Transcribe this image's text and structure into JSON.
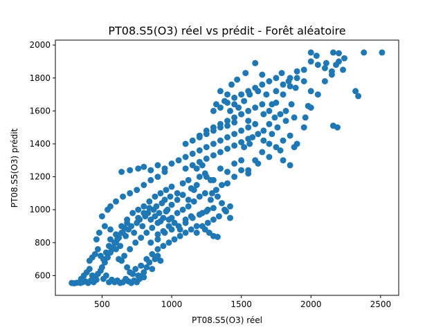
{
  "chart_data": {
    "type": "scatter",
    "title": "PT08.S5(O3) réel vs prédit - Forêt aléatoire",
    "xlabel": "PT08.S5(O3) réel",
    "ylabel": "PT08.S5(O3) prédit",
    "xlim": [
      165,
      2630
    ],
    "ylim": [
      480,
      2030
    ],
    "xticks": [
      500,
      1000,
      1500,
      2000,
      2500
    ],
    "yticks": [
      600,
      800,
      1000,
      1200,
      1400,
      1600,
      1800,
      2000
    ],
    "xtick_labels": [
      "500",
      "1000",
      "1500",
      "2000",
      "2500"
    ],
    "ytick_labels": [
      "600",
      "800",
      "1000",
      "1200",
      "1400",
      "1600",
      "1800",
      "2000"
    ],
    "grid": false,
    "legend": null,
    "marker_color": "#1f77b4",
    "point_count_note": "",
    "points": [
      [
        283,
        555
      ],
      [
        300,
        553
      ],
      [
        320,
        557
      ],
      [
        345,
        555
      ],
      [
        360,
        560
      ],
      [
        380,
        565
      ],
      [
        400,
        555
      ],
      [
        420,
        570
      ],
      [
        440,
        560
      ],
      [
        460,
        575
      ],
      [
        350,
        580
      ],
      [
        370,
        600
      ],
      [
        390,
        620
      ],
      [
        410,
        640
      ],
      [
        430,
        600
      ],
      [
        450,
        590
      ],
      [
        470,
        610
      ],
      [
        490,
        630
      ],
      [
        510,
        580
      ],
      [
        530,
        600
      ],
      [
        550,
        560
      ],
      [
        570,
        575
      ],
      [
        590,
        560
      ],
      [
        610,
        570
      ],
      [
        630,
        555
      ],
      [
        650,
        560
      ],
      [
        670,
        580
      ],
      [
        690,
        565
      ],
      [
        710,
        555
      ],
      [
        730,
        570
      ],
      [
        750,
        560
      ],
      [
        770,
        580
      ],
      [
        790,
        600
      ],
      [
        800,
        620
      ],
      [
        820,
        650
      ],
      [
        840,
        680
      ],
      [
        860,
        640
      ],
      [
        880,
        700
      ],
      [
        900,
        720
      ],
      [
        920,
        690
      ],
      [
        410,
        690
      ],
      [
        430,
        710
      ],
      [
        450,
        730
      ],
      [
        470,
        760
      ],
      [
        490,
        720
      ],
      [
        510,
        700
      ],
      [
        530,
        740
      ],
      [
        550,
        780
      ],
      [
        570,
        760
      ],
      [
        590,
        800
      ],
      [
        610,
        820
      ],
      [
        630,
        780
      ],
      [
        650,
        860
      ],
      [
        670,
        840
      ],
      [
        690,
        880
      ],
      [
        710,
        900
      ],
      [
        730,
        860
      ],
      [
        750,
        920
      ],
      [
        770,
        940
      ],
      [
        790,
        900
      ],
      [
        810,
        960
      ],
      [
        830,
        980
      ],
      [
        850,
        940
      ],
      [
        870,
        1000
      ],
      [
        890,
        1020
      ],
      [
        910,
        980
      ],
      [
        930,
        1040
      ],
      [
        950,
        1060
      ],
      [
        970,
        1000
      ],
      [
        990,
        1080
      ],
      [
        500,
        960
      ],
      [
        560,
        880
      ],
      [
        600,
        850
      ],
      [
        640,
        900
      ],
      [
        680,
        940
      ],
      [
        720,
        980
      ],
      [
        760,
        1000
      ],
      [
        800,
        1020
      ],
      [
        840,
        1050
      ],
      [
        880,
        1080
      ],
      [
        920,
        1100
      ],
      [
        960,
        1120
      ],
      [
        1000,
        1140
      ],
      [
        1040,
        1100
      ],
      [
        1080,
        1160
      ],
      [
        1120,
        1180
      ],
      [
        1160,
        1120
      ],
      [
        1200,
        1200
      ],
      [
        1240,
        1220
      ],
      [
        1280,
        1180
      ],
      [
        1000,
        950
      ],
      [
        1040,
        980
      ],
      [
        1080,
        1000
      ],
      [
        1120,
        1020
      ],
      [
        1160,
        1050
      ],
      [
        1200,
        1080
      ],
      [
        1240,
        1100
      ],
      [
        1280,
        1060
      ],
      [
        1320,
        1120
      ],
      [
        1360,
        1150
      ],
      [
        900,
        850
      ],
      [
        940,
        870
      ],
      [
        980,
        900
      ],
      [
        1020,
        920
      ],
      [
        1060,
        880
      ],
      [
        1100,
        940
      ],
      [
        1140,
        960
      ],
      [
        1180,
        900
      ],
      [
        1220,
        980
      ],
      [
        1260,
        1000
      ],
      [
        700,
        620
      ],
      [
        740,
        640
      ],
      [
        780,
        660
      ],
      [
        820,
        700
      ],
      [
        860,
        730
      ],
      [
        900,
        760
      ],
      [
        940,
        780
      ],
      [
        980,
        800
      ],
      [
        1020,
        820
      ],
      [
        1060,
        840
      ],
      [
        1100,
        860
      ],
      [
        1140,
        880
      ],
      [
        1180,
        860
      ],
      [
        1220,
        900
      ],
      [
        1260,
        920
      ],
      [
        1300,
        940
      ],
      [
        1340,
        960
      ],
      [
        1380,
        1000
      ],
      [
        1420,
        1020
      ],
      [
        1300,
        840
      ],
      [
        640,
        1230
      ],
      [
        700,
        1240
      ],
      [
        760,
        1250
      ],
      [
        800,
        1260
      ],
      [
        850,
        1240
      ],
      [
        900,
        1270
      ],
      [
        950,
        1250
      ],
      [
        1000,
        1280
      ],
      [
        1050,
        1300
      ],
      [
        1100,
        1320
      ],
      [
        1150,
        1340
      ],
      [
        1200,
        1360
      ],
      [
        1250,
        1380
      ],
      [
        1300,
        1400
      ],
      [
        1350,
        1420
      ],
      [
        1400,
        1440
      ],
      [
        1450,
        1460
      ],
      [
        1500,
        1480
      ],
      [
        1550,
        1500
      ],
      [
        1600,
        1520
      ],
      [
        1100,
        1250
      ],
      [
        1150,
        1270
      ],
      [
        1200,
        1290
      ],
      [
        1250,
        1310
      ],
      [
        1300,
        1330
      ],
      [
        1350,
        1350
      ],
      [
        1400,
        1370
      ],
      [
        1450,
        1390
      ],
      [
        1500,
        1410
      ],
      [
        1550,
        1430
      ],
      [
        1200,
        1450
      ],
      [
        1250,
        1480
      ],
      [
        1300,
        1500
      ],
      [
        1350,
        1520
      ],
      [
        1400,
        1540
      ],
      [
        1450,
        1560
      ],
      [
        1500,
        1580
      ],
      [
        1550,
        1600
      ],
      [
        1600,
        1620
      ],
      [
        1650,
        1640
      ],
      [
        1300,
        1600
      ],
      [
        1350,
        1620
      ],
      [
        1400,
        1650
      ],
      [
        1450,
        1680
      ],
      [
        1500,
        1700
      ],
      [
        1550,
        1720
      ],
      [
        1600,
        1740
      ],
      [
        1650,
        1760
      ],
      [
        1700,
        1780
      ],
      [
        1750,
        1800
      ],
      [
        1600,
        1300
      ],
      [
        1650,
        1350
      ],
      [
        1700,
        1400
      ],
      [
        1750,
        1380
      ],
      [
        1800,
        1420
      ],
      [
        1850,
        1450
      ],
      [
        1900,
        1400
      ],
      [
        1950,
        1500
      ],
      [
        1850,
        1270
      ],
      [
        1800,
        1300
      ],
      [
        1550,
        1240
      ],
      [
        1620,
        1280
      ],
      [
        1700,
        1320
      ],
      [
        1780,
        1360
      ],
      [
        1880,
        1380
      ],
      [
        1660,
        1420
      ],
      [
        1720,
        1460
      ],
      [
        1760,
        1500
      ],
      [
        1820,
        1540
      ],
      [
        1880,
        1560
      ],
      [
        1700,
        1600
      ],
      [
        1750,
        1650
      ],
      [
        1800,
        1700
      ],
      [
        1850,
        1750
      ],
      [
        1900,
        1800
      ],
      [
        1950,
        1850
      ],
      [
        2000,
        1900
      ],
      [
        2050,
        1880
      ],
      [
        2100,
        1860
      ],
      [
        2150,
        1840
      ],
      [
        1750,
        1720
      ],
      [
        1800,
        1760
      ],
      [
        1850,
        1800
      ],
      [
        1900,
        1840
      ],
      [
        1950,
        1780
      ],
      [
        2000,
        1720
      ],
      [
        2050,
        1700
      ],
      [
        1980,
        1630
      ],
      [
        2000,
        1620
      ],
      [
        1960,
        1560
      ],
      [
        2100,
        1780
      ],
      [
        2150,
        1820
      ],
      [
        2180,
        1880
      ],
      [
        2200,
        1900
      ],
      [
        2230,
        1850
      ],
      [
        2160,
        1510
      ],
      [
        2190,
        1500
      ],
      [
        2320,
        1720
      ],
      [
        2340,
        1690
      ],
      [
        2380,
        1955
      ],
      [
        2510,
        1955
      ],
      [
        2000,
        1955
      ],
      [
        2040,
        1935
      ],
      [
        2110,
        1890
      ],
      [
        2160,
        1955
      ],
      [
        2200,
        1950
      ],
      [
        2240,
        1920
      ],
      [
        1890,
        1740
      ],
      [
        1840,
        1780
      ],
      [
        1790,
        1830
      ],
      [
        1500,
        1580
      ],
      [
        1550,
        1540
      ],
      [
        1450,
        1640
      ],
      [
        1400,
        1700
      ],
      [
        1350,
        1720
      ],
      [
        1430,
        1760
      ],
      [
        1470,
        1790
      ],
      [
        1530,
        1830
      ],
      [
        1600,
        1890
      ],
      [
        1650,
        1820
      ],
      [
        1250,
        1200
      ],
      [
        1300,
        1180
      ],
      [
        1350,
        1250
      ],
      [
        1400,
        1230
      ],
      [
        1450,
        1280
      ],
      [
        1500,
        1300
      ],
      [
        1450,
        1200
      ],
      [
        1500,
        1240
      ],
      [
        1550,
        1220
      ],
      [
        1400,
        1160
      ],
      [
        900,
        1200
      ],
      [
        950,
        1230
      ],
      [
        850,
        1180
      ],
      [
        800,
        1150
      ],
      [
        750,
        1120
      ],
      [
        700,
        1100
      ],
      [
        650,
        1080
      ],
      [
        600,
        1050
      ],
      [
        560,
        1020
      ],
      [
        540,
        1000
      ],
      [
        760,
        950
      ],
      [
        800,
        980
      ],
      [
        840,
        1010
      ],
      [
        880,
        960
      ],
      [
        920,
        930
      ],
      [
        960,
        990
      ],
      [
        1000,
        1030
      ],
      [
        1040,
        1060
      ],
      [
        1080,
        1090
      ],
      [
        1120,
        1060
      ],
      [
        620,
        700
      ],
      [
        660,
        720
      ],
      [
        700,
        760
      ],
      [
        740,
        800
      ],
      [
        780,
        830
      ],
      [
        820,
        860
      ],
      [
        860,
        890
      ],
      [
        900,
        920
      ],
      [
        940,
        950
      ],
      [
        980,
        940
      ],
      [
        500,
        650
      ],
      [
        520,
        680
      ],
      [
        540,
        710
      ],
      [
        560,
        740
      ],
      [
        580,
        770
      ],
      [
        600,
        800
      ],
      [
        620,
        830
      ],
      [
        640,
        860
      ],
      [
        660,
        890
      ],
      [
        680,
        920
      ],
      [
        460,
        820
      ],
      [
        480,
        860
      ],
      [
        520,
        900
      ],
      [
        560,
        820
      ],
      [
        600,
        760
      ],
      [
        640,
        690
      ],
      [
        680,
        650
      ],
      [
        720,
        610
      ],
      [
        760,
        600
      ],
      [
        800,
        590
      ],
      [
        850,
        800
      ],
      [
        900,
        820
      ],
      [
        950,
        860
      ],
      [
        1000,
        880
      ],
      [
        1050,
        900
      ],
      [
        1100,
        920
      ],
      [
        1150,
        950
      ],
      [
        1200,
        970
      ],
      [
        1250,
        990
      ],
      [
        1300,
        1010
      ],
      [
        1100,
        1400
      ],
      [
        1150,
        1420
      ],
      [
        1200,
        1440
      ],
      [
        1250,
        1460
      ],
      [
        1300,
        1480
      ],
      [
        1350,
        1500
      ],
      [
        1400,
        1510
      ],
      [
        1450,
        1530
      ],
      [
        1180,
        1250
      ],
      [
        1220,
        1270
      ],
      [
        1320,
        1640
      ],
      [
        1380,
        1660
      ],
      [
        1420,
        1600
      ],
      [
        1480,
        1620
      ],
      [
        1520,
        1660
      ],
      [
        1560,
        1700
      ],
      [
        1620,
        1720
      ],
      [
        1680,
        1700
      ],
      [
        1720,
        1640
      ],
      [
        1660,
        1580
      ],
      [
        1520,
        1380
      ],
      [
        1560,
        1400
      ],
      [
        1580,
        1440
      ],
      [
        1620,
        1460
      ],
      [
        1660,
        1480
      ],
      [
        1700,
        1520
      ],
      [
        1740,
        1560
      ],
      [
        1780,
        1580
      ],
      [
        1820,
        1600
      ],
      [
        1860,
        1640
      ],
      [
        1330,
        835
      ],
      [
        1240,
        880
      ],
      [
        1270,
        860
      ],
      [
        1420,
        950
      ],
      [
        1390,
        990
      ],
      [
        1360,
        1040
      ],
      [
        1330,
        1080
      ],
      [
        1290,
        1100
      ],
      [
        1180,
        1150
      ],
      [
        1140,
        1130
      ]
    ]
  }
}
